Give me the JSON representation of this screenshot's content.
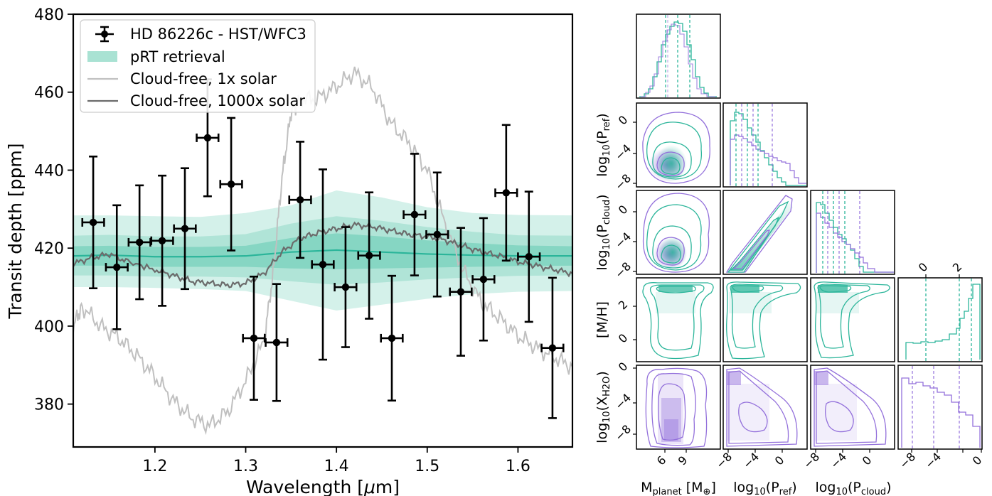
{
  "chart_data": [
    {
      "type": "line",
      "xlabel": "Wavelength [μm]",
      "ylabel": "Transit depth [ppm]",
      "xlim": [
        1.11,
        1.66
      ],
      "ylim": [
        369,
        480
      ],
      "xticks": [
        1.2,
        1.3,
        1.4,
        1.5,
        1.6
      ],
      "yticks": [
        380,
        400,
        420,
        440,
        460,
        480
      ],
      "colors": {
        "data": "#000000",
        "retrieval": "#2bb59a",
        "band_inner": "#7fd3bf",
        "band_mid": "#a9e2d3",
        "band_outer": "#cdeee6",
        "solar_1x": "#c0c0c0",
        "solar_1000x": "#6b6b6b"
      },
      "legend": {
        "position": "top-left",
        "entries": [
          "HD 86226c - HST/WFC3",
          "pRT retrieval",
          "Cloud-free, 1x solar",
          "Cloud-free, 1000x solar"
        ]
      },
      "series": [
        {
          "name": "HD 86226c - HST/WFC3",
          "kind": "errorbar",
          "x": [
            1.132,
            1.158,
            1.183,
            1.208,
            1.233,
            1.258,
            1.284,
            1.309,
            1.334,
            1.36,
            1.385,
            1.41,
            1.436,
            1.461,
            1.486,
            1.511,
            1.537,
            1.562,
            1.587,
            1.612,
            1.638
          ],
          "y": [
            426.6,
            415.1,
            421.5,
            421.9,
            425.0,
            448.3,
            436.4,
            396.9,
            395.8,
            432.4,
            415.8,
            410.0,
            418.1,
            396.9,
            428.6,
            423.5,
            408.8,
            412.0,
            434.2,
            417.8,
            394.4
          ],
          "yerr": [
            16.9,
            15.9,
            14.6,
            16.7,
            15.5,
            15.0,
            17.0,
            15.8,
            15.0,
            14.9,
            24.4,
            15.4,
            16.2,
            16.0,
            15.6,
            15.9,
            16.4,
            15.7,
            17.4,
            16.7,
            18.0
          ],
          "xerr": 0.012
        },
        {
          "name": "pRT retrieval",
          "kind": "band",
          "x": [
            1.11,
            1.15,
            1.2,
            1.25,
            1.3,
            1.35,
            1.4,
            1.45,
            1.5,
            1.55,
            1.6,
            1.66
          ],
          "median": [
            418.0,
            418.2,
            417.8,
            417.8,
            418.0,
            419.0,
            419.5,
            419.0,
            418.5,
            418.2,
            418.0,
            418.0
          ],
          "inner": [
            [
              415.5,
              420.5
            ],
            [
              415.5,
              420.6
            ],
            [
              415.2,
              420.3
            ],
            [
              415.2,
              420.3
            ],
            [
              415.2,
              420.6
            ],
            [
              414.8,
              422.6
            ],
            [
              414.6,
              423.8
            ],
            [
              414.8,
              423.0
            ],
            [
              415.0,
              422.0
            ],
            [
              415.2,
              421.3
            ],
            [
              415.4,
              420.7
            ],
            [
              415.5,
              420.5
            ]
          ],
          "mid": [
            [
              413.0,
              423.2
            ],
            [
              413.0,
              423.4
            ],
            [
              412.7,
              423.0
            ],
            [
              412.7,
              423.0
            ],
            [
              412.5,
              423.6
            ],
            [
              411.5,
              426.3
            ],
            [
              410.6,
              428.2
            ],
            [
              411.2,
              427.0
            ],
            [
              412.0,
              425.4
            ],
            [
              412.5,
              424.2
            ],
            [
              412.9,
              423.3
            ],
            [
              413.0,
              423.2
            ]
          ],
          "outer": [
            [
              410.0,
              428.4
            ],
            [
              410.0,
              428.4
            ],
            [
              409.8,
              428.2
            ],
            [
              409.5,
              428.0
            ],
            [
              409.0,
              429.0
            ],
            [
              406.5,
              431.0
            ],
            [
              404.0,
              434.8
            ],
            [
              405.5,
              433.0
            ],
            [
              407.0,
              430.5
            ],
            [
              408.2,
              429.0
            ],
            [
              408.8,
              428.5
            ],
            [
              409.0,
              428.4
            ]
          ]
        },
        {
          "name": "Cloud-free, 1x solar",
          "kind": "line",
          "x": [
            1.11,
            1.12,
            1.14,
            1.16,
            1.18,
            1.2,
            1.22,
            1.24,
            1.26,
            1.28,
            1.3,
            1.32,
            1.33,
            1.34,
            1.35,
            1.36,
            1.38,
            1.4,
            1.42,
            1.44,
            1.46,
            1.48,
            1.5,
            1.52,
            1.54,
            1.56,
            1.58,
            1.6,
            1.62,
            1.64,
            1.66
          ],
          "y": [
            400.5,
            405.0,
            400.0,
            397.0,
            392.5,
            387.0,
            381.0,
            376.5,
            374.5,
            378.0,
            386.0,
            396.0,
            413.0,
            438.0,
            455.0,
            458.0,
            458.5,
            461.5,
            465.0,
            461.0,
            452.0,
            447.0,
            440.0,
            426.0,
            414.0,
            406.0,
            402.0,
            397.5,
            394.5,
            392.0,
            389.5
          ]
        },
        {
          "name": "Cloud-free, 1000x solar",
          "kind": "line",
          "x": [
            1.11,
            1.13,
            1.15,
            1.17,
            1.2,
            1.22,
            1.24,
            1.26,
            1.28,
            1.3,
            1.32,
            1.34,
            1.36,
            1.38,
            1.4,
            1.42,
            1.44,
            1.46,
            1.48,
            1.5,
            1.52,
            1.54,
            1.56,
            1.58,
            1.6,
            1.62,
            1.64,
            1.66
          ],
          "y": [
            416.0,
            417.5,
            418.5,
            416.5,
            414.5,
            413.0,
            411.5,
            411.0,
            410.5,
            411.0,
            413.5,
            419.0,
            422.5,
            424.0,
            425.0,
            426.0,
            425.5,
            424.5,
            423.5,
            423.0,
            422.0,
            420.5,
            419.0,
            418.0,
            416.5,
            415.5,
            414.5,
            413.5
          ]
        }
      ]
    },
    {
      "type": "corner",
      "parameters": [
        "M_planet [M⊕]",
        "log10(P_ref)",
        "log10(P_cloud)",
        "[M/H]",
        "log10(X_H2O)"
      ],
      "axis_labels": {
        "x": [
          "M",
          "log",
          "log",
          ""
        ],
        "x_sub": [
          "planet",
          "10",
          "10",
          ""
        ],
        "x_tail": [
          " [M",
          "(P",
          "(P",
          ""
        ],
        "x_sub2": [
          "",
          "ref",
          "cloud",
          ""
        ],
        "x_end": [
          "]",
          ")",
          ")",
          ""
        ],
        "y": [
          "log",
          "log",
          "[M/H]",
          "log"
        ],
        "y_sub": [
          "10",
          "10",
          "",
          "10"
        ],
        "y_tail": [
          "(P",
          "(P",
          "",
          "(X"
        ],
        "y_sub2": [
          "ref",
          "cloud",
          "",
          "H2O"
        ],
        "y_end": [
          ")",
          ")",
          "",
          ")"
        ]
      },
      "ticks": {
        "mass": [
          "6",
          "9"
        ],
        "log": [
          "−8",
          "−4",
          "0"
        ],
        "mh": [
          "0",
          "2"
        ]
      },
      "colors": {
        "teal": "#2bb59a",
        "purple": "#9370db"
      }
    }
  ]
}
